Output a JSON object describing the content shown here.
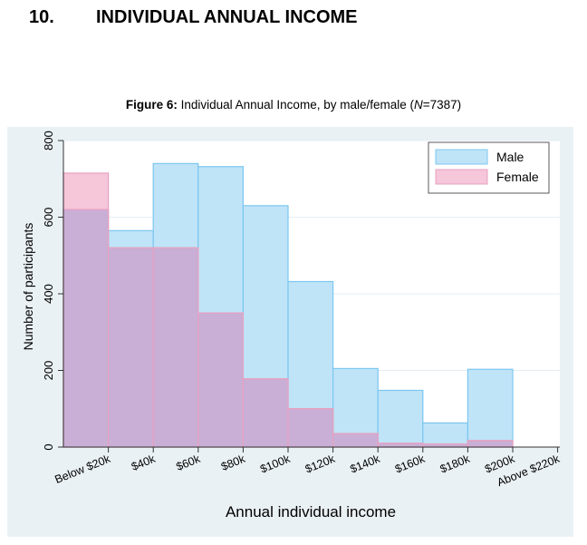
{
  "heading": {
    "number": "10.",
    "title": "INDIVIDUAL ANNUAL INCOME"
  },
  "caption": {
    "label": "Figure 6:",
    "text_before": " Individual Annual Income, by male/female (",
    "n_symbol": "N",
    "n_value": "=7387)"
  },
  "colors": {
    "male_fill": "#bfe3f7",
    "male_stroke": "#7cc7f0",
    "female_fill": "#f6c6d9",
    "female_stroke": "#e8a0c0",
    "overlap_fill": "#c9afd6",
    "plot_background": "#ffffff",
    "outer_background": "#eaf1f5",
    "grid": "#e6eef2"
  },
  "chart_data": {
    "type": "bar",
    "title": "",
    "xlabel": "Annual individual income",
    "ylabel": "Number of participants",
    "ylim": [
      0,
      800
    ],
    "yticks": [
      0,
      200,
      400,
      600,
      800
    ],
    "grid": true,
    "legend_position": "top-right",
    "x_tick_labels": [
      "Below $20k",
      "$40k",
      "$60k",
      "$80k",
      "$100k",
      "$120k",
      "$140k",
      "$160k",
      "$180k",
      "$200k",
      "Above $220k"
    ],
    "categories": [
      "Below $20k",
      "$20k-$40k",
      "$40k-$60k",
      "$60k-$80k",
      "$80k-$100k",
      "$100k-$120k",
      "$120k-$140k",
      "$140k-$160k",
      "$160k-$180k",
      "$180k-$200k",
      "$200k-$220k"
    ],
    "series": [
      {
        "name": "Male",
        "values": [
          620,
          565,
          740,
          732,
          630,
          432,
          205,
          148,
          63,
          203,
          0
        ]
      },
      {
        "name": "Female",
        "values": [
          715,
          520,
          520,
          350,
          178,
          100,
          35,
          10,
          8,
          17,
          0
        ]
      }
    ]
  }
}
